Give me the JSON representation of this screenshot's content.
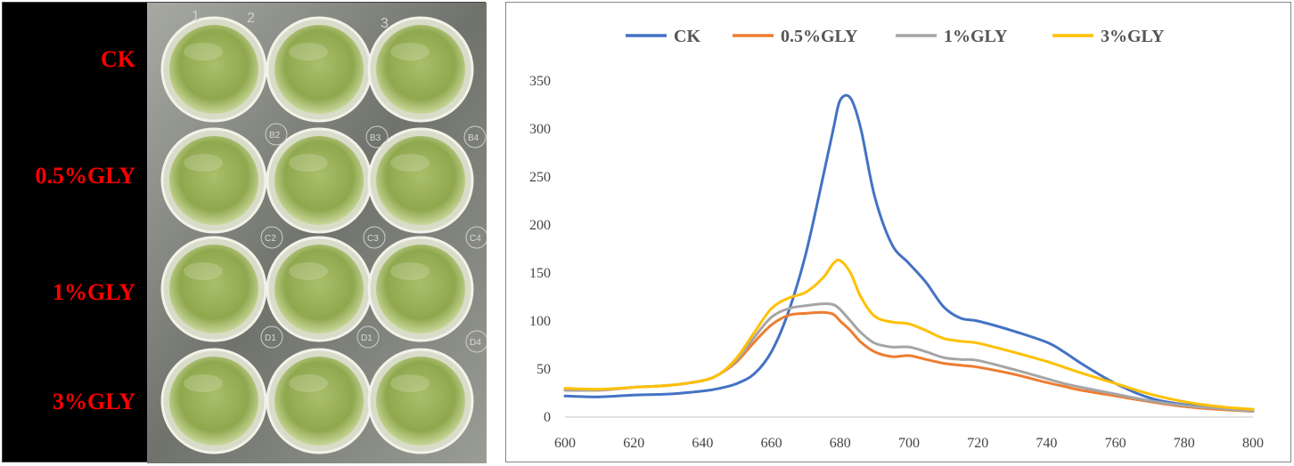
{
  "photo": {
    "row_labels": [
      "CK",
      "0.5%GLY",
      "1%GLY",
      "3%GLY"
    ],
    "column_marks": [
      "1",
      "2",
      "3"
    ],
    "well_marks": [
      "B2",
      "B3",
      "B4",
      "C2",
      "C3",
      "C4",
      "D1",
      "D1",
      "D4"
    ],
    "liquid_color": "#b7c67a",
    "plate_color": "#8a8f86"
  },
  "chart_data": {
    "type": "line",
    "title": "",
    "xlabel": "",
    "ylabel": "",
    "xlim": [
      600,
      800
    ],
    "ylim": [
      0,
      350
    ],
    "x_ticks": [
      600,
      620,
      640,
      660,
      680,
      700,
      720,
      740,
      760,
      780,
      800
    ],
    "y_ticks": [
      0,
      50,
      100,
      150,
      200,
      250,
      300,
      350
    ],
    "grid": false,
    "legend_position": "top",
    "x": [
      600,
      610,
      620,
      630,
      640,
      645,
      650,
      655,
      660,
      665,
      670,
      675,
      678,
      680,
      683,
      686,
      690,
      695,
      700,
      705,
      710,
      715,
      720,
      730,
      740,
      745,
      750,
      760,
      770,
      780,
      790,
      800
    ],
    "series": [
      {
        "name": "CK",
        "color": "#4472c4",
        "values": [
          22,
          21,
          23,
          24,
          27,
          30,
          35,
          45,
          68,
          110,
          170,
          250,
          300,
          330,
          332,
          300,
          230,
          180,
          160,
          140,
          115,
          103,
          100,
          90,
          78,
          68,
          56,
          35,
          20,
          13,
          10,
          8
        ]
      },
      {
        "name": "0.5%GLY",
        "color": "#ed7d31",
        "values": [
          28,
          28,
          31,
          33,
          38,
          45,
          58,
          78,
          96,
          106,
          108,
          109,
          107,
          100,
          90,
          78,
          68,
          63,
          64,
          60,
          56,
          54,
          52,
          45,
          36,
          32,
          28,
          22,
          16,
          11,
          8,
          6
        ]
      },
      {
        "name": "1%GLY",
        "color": "#a5a5a5",
        "values": [
          28,
          28,
          31,
          33,
          38,
          45,
          60,
          83,
          104,
          113,
          116,
          118,
          117,
          112,
          100,
          88,
          77,
          73,
          73,
          68,
          62,
          60,
          59,
          50,
          40,
          35,
          31,
          24,
          17,
          12,
          9,
          6
        ]
      },
      {
        "name": "3%GLY",
        "color": "#ffc000",
        "values": [
          30,
          29,
          31,
          33,
          38,
          45,
          62,
          88,
          113,
          124,
          130,
          145,
          160,
          163,
          150,
          125,
          105,
          99,
          97,
          90,
          82,
          79,
          77,
          68,
          58,
          52,
          46,
          35,
          24,
          16,
          11,
          8
        ]
      }
    ]
  }
}
